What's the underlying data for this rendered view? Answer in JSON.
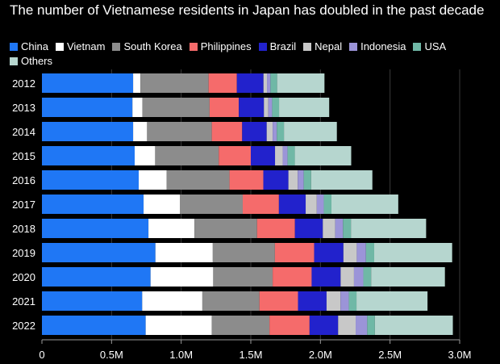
{
  "chart_data": {
    "type": "bar",
    "orientation": "horizontal",
    "stacked": true,
    "title": "The number of Vietnamese residents in Japan has doubled in the past decade",
    "categories": [
      "2012",
      "2013",
      "2014",
      "2015",
      "2016",
      "2017",
      "2018",
      "2019",
      "2020",
      "2021",
      "2022"
    ],
    "series": [
      {
        "name": "China",
        "color": "#1f77f5",
        "values": [
          655000,
          650000,
          655000,
          666000,
          695000,
          730000,
          765000,
          815000,
          780000,
          720000,
          745000
        ]
      },
      {
        "name": "Vietnam",
        "color": "#ffffff",
        "values": [
          52000,
          72000,
          100000,
          147000,
          200000,
          262000,
          330000,
          412000,
          450000,
          432000,
          475000
        ]
      },
      {
        "name": "South Korea",
        "color": "#8c8c8c",
        "values": [
          490000,
          482000,
          465000,
          457000,
          452000,
          450000,
          450000,
          446000,
          427000,
          410000,
          414000
        ]
      },
      {
        "name": "Philippines",
        "color": "#f56b6b",
        "values": [
          203000,
          210000,
          218000,
          230000,
          243000,
          260000,
          272000,
          282000,
          280000,
          277000,
          288000
        ]
      },
      {
        "name": "Brazil",
        "color": "#2222cc",
        "values": [
          191000,
          180000,
          176000,
          174000,
          180000,
          192000,
          200000,
          210000,
          208000,
          205000,
          205000
        ]
      },
      {
        "name": "Nepal",
        "color": "#c8c8c8",
        "values": [
          25000,
          32000,
          43000,
          55000,
          67000,
          80000,
          89000,
          96000,
          96000,
          100000,
          126000
        ]
      },
      {
        "name": "Indonesia",
        "color": "#9b94d8",
        "values": [
          25000,
          27000,
          30000,
          35000,
          43000,
          50000,
          56000,
          66000,
          67000,
          60000,
          83000
        ]
      },
      {
        "name": "USA",
        "color": "#6fb8a6",
        "values": [
          48000,
          50000,
          51000,
          52000,
          53000,
          55000,
          57000,
          59000,
          56000,
          55000,
          55000
        ]
      },
      {
        "name": "Others",
        "color": "#b6d6cf",
        "values": [
          340000,
          360000,
          380000,
          405000,
          440000,
          480000,
          540000,
          560000,
          530000,
          510000,
          560000
        ]
      }
    ],
    "xlim": [
      0,
      3000000
    ],
    "x_ticks": [
      0,
      500000,
      1000000,
      1500000,
      2000000,
      2500000,
      3000000
    ],
    "x_tick_labels": [
      "0",
      "0.5M",
      "1.0M",
      "1.5M",
      "2.0M",
      "2.5M",
      "3.0M"
    ],
    "xlabel": "",
    "ylabel": "",
    "grid": true,
    "legend_position": "top"
  }
}
